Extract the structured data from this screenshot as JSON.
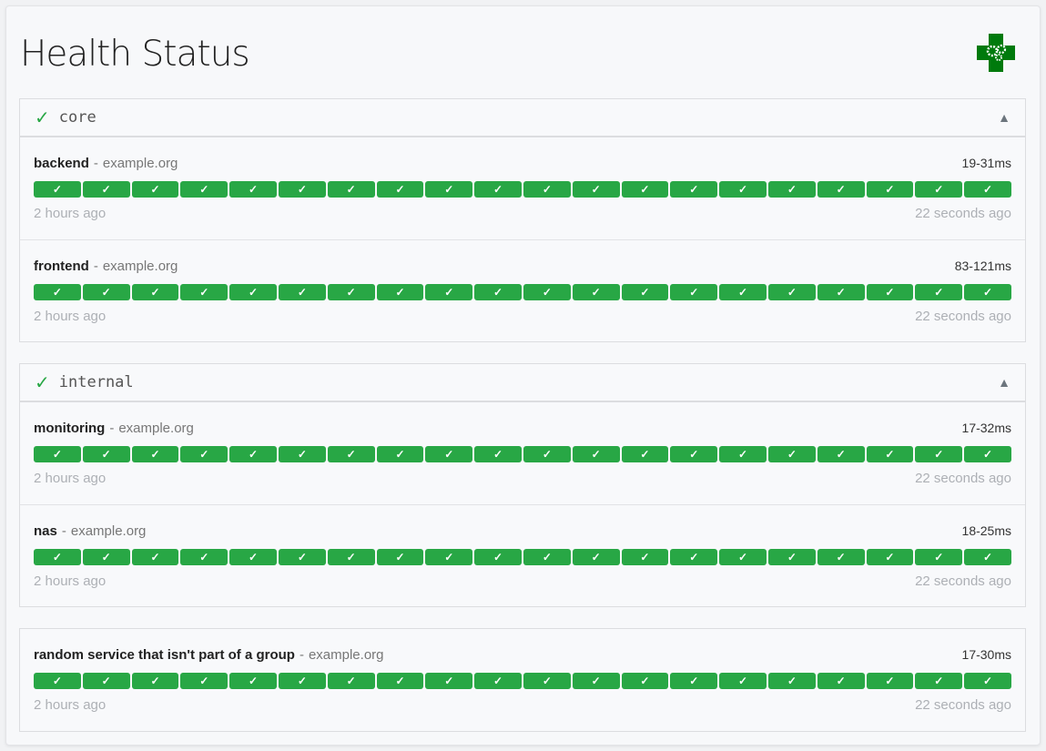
{
  "title": "Health Status",
  "colors": {
    "success": "#28a745",
    "logo": "#007a0c"
  },
  "groups": [
    {
      "name": "core",
      "check": "✓",
      "toggle": "▲",
      "services": [
        {
          "name": "backend",
          "host": "example.org",
          "response_time": "19-31ms",
          "oldest": "2 hours ago",
          "newest": "22 seconds ago",
          "results": 20
        },
        {
          "name": "frontend",
          "host": "example.org",
          "response_time": "83-121ms",
          "oldest": "2 hours ago",
          "newest": "22 seconds ago",
          "results": 20
        }
      ]
    },
    {
      "name": "internal",
      "check": "✓",
      "toggle": "▲",
      "services": [
        {
          "name": "monitoring",
          "host": "example.org",
          "response_time": "17-32ms",
          "oldest": "2 hours ago",
          "newest": "22 seconds ago",
          "results": 20
        },
        {
          "name": "nas",
          "host": "example.org",
          "response_time": "18-25ms",
          "oldest": "2 hours ago",
          "newest": "22 seconds ago",
          "results": 20
        }
      ]
    },
    {
      "name": "",
      "services": [
        {
          "name": "random service that isn't part of a group",
          "host": "example.org",
          "response_time": "17-30ms",
          "oldest": "2 hours ago",
          "newest": "22 seconds ago",
          "results": 20
        }
      ]
    }
  ],
  "result_mark": "✓",
  "separator": "-"
}
